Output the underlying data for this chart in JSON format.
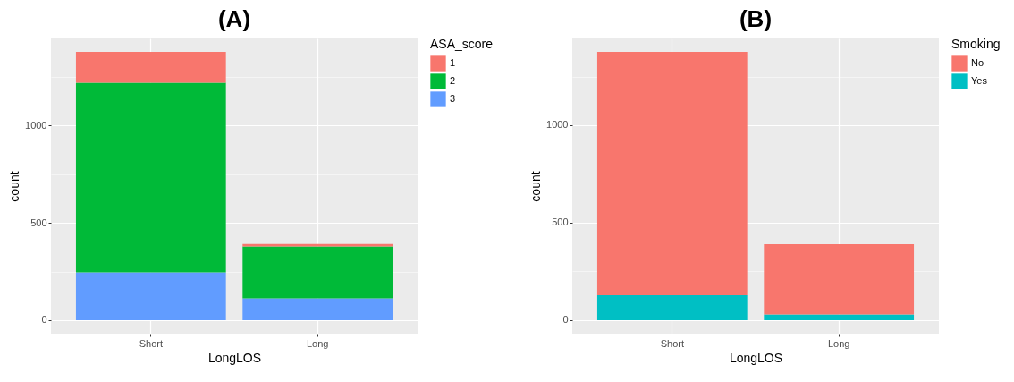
{
  "chart_data": [
    {
      "type": "bar",
      "title": "(A)",
      "xlabel": "LongLOS",
      "ylabel": "count",
      "legend_title": "ASA_score",
      "categories": [
        "Short",
        "Long"
      ],
      "stacked": true,
      "series": [
        {
          "name": "3",
          "color": "#619cff",
          "values": [
            246,
            113
          ]
        },
        {
          "name": "2",
          "color": "#00ba38",
          "values": [
            974,
            266
          ]
        },
        {
          "name": "1",
          "color": "#f8766d",
          "values": [
            158,
            13
          ]
        }
      ],
      "ylim": [
        -69,
        1447
      ],
      "yticks": [
        0,
        {
          "value": 250,
          "label": null
        },
        500,
        {
          "value": 750,
          "label": null
        },
        1000,
        {
          "value": 1250,
          "label": null
        }
      ],
      "grid": true,
      "legend": "right"
    },
    {
      "type": "bar",
      "title": "(B)",
      "xlabel": "LongLOS",
      "ylabel": "count",
      "legend_title": "Smoking",
      "categories": [
        "Short",
        "Long"
      ],
      "stacked": true,
      "series": [
        {
          "name": "Yes",
          "color": "#00bfc4",
          "values": [
            128,
            30
          ]
        },
        {
          "name": "No",
          "color": "#f8766d",
          "values": [
            1248,
            360
          ]
        }
      ],
      "ylim": [
        -69,
        1445
      ],
      "yticks": [
        0,
        {
          "value": 250,
          "label": null
        },
        500,
        {
          "value": 750,
          "label": null
        },
        1000,
        {
          "value": 1250,
          "label": null
        }
      ],
      "grid": true,
      "legend": "right"
    }
  ]
}
